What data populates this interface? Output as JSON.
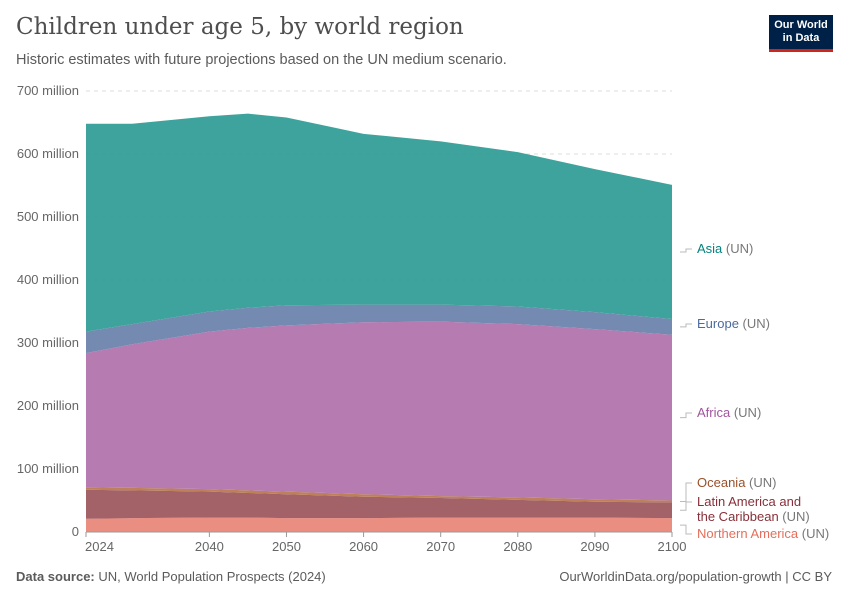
{
  "header": {
    "title": "Children under age 5, by world region",
    "subtitle": "Historic estimates with future projections based on the UN medium scenario.",
    "logo": "Our World in Data"
  },
  "footer": {
    "source_label": "Data source:",
    "source": "UN, World Population Prospects (2024)",
    "url": "OurWorldinData.org/population-growth | CC BY"
  },
  "chart_data": {
    "type": "area",
    "stacked": true,
    "x": [
      2024,
      2030,
      2040,
      2045,
      2050,
      2060,
      2070,
      2080,
      2090,
      2100
    ],
    "xticks": [
      "2024",
      "2040",
      "2050",
      "2060",
      "2070",
      "2080",
      "2090",
      "2100"
    ],
    "yticks": [
      "0",
      "100 million",
      "200 million",
      "300 million",
      "400 million",
      "500 million",
      "600 million",
      "700 million"
    ],
    "ylim": [
      0,
      700000000
    ],
    "grid": "horizontal dashed",
    "legend": "right, inline labels",
    "unit": "million",
    "series": [
      {
        "name": "Northern America",
        "suffix": "(UN)",
        "color": "#e8887a",
        "label_color": "#e56e5a",
        "values": [
          21,
          22,
          23,
          23,
          22,
          22,
          23,
          23,
          23,
          22
        ]
      },
      {
        "name": "Latin America and the Caribbean",
        "suffix": "(UN)",
        "color": "#9e5960",
        "label_color": "#883039",
        "values": [
          46,
          44,
          41,
          39,
          38,
          34,
          31,
          28,
          25,
          25
        ]
      },
      {
        "name": "Oceania",
        "suffix": "(UN)",
        "color": "#b9794f",
        "label_color": "#9a5129",
        "values": [
          4,
          4,
          4,
          4,
          4,
          4,
          3,
          4,
          4,
          3
        ]
      },
      {
        "name": "Africa",
        "suffix": "(UN)",
        "color": "#b275ae",
        "label_color": "#a2559c",
        "values": [
          213,
          228,
          250,
          258,
          264,
          273,
          277,
          275,
          270,
          263
        ]
      },
      {
        "name": "Europe",
        "suffix": "(UN)",
        "color": "#6d84ad",
        "label_color": "#4c6a9c",
        "values": [
          34,
          32,
          32,
          32,
          32,
          28,
          27,
          28,
          27,
          25
        ]
      },
      {
        "name": "Asia",
        "suffix": "(UN)",
        "color": "#349e97",
        "label_color": "#00847e",
        "values": [
          330,
          318,
          310,
          308,
          298,
          271,
          259,
          245,
          227,
          213
        ]
      }
    ]
  }
}
